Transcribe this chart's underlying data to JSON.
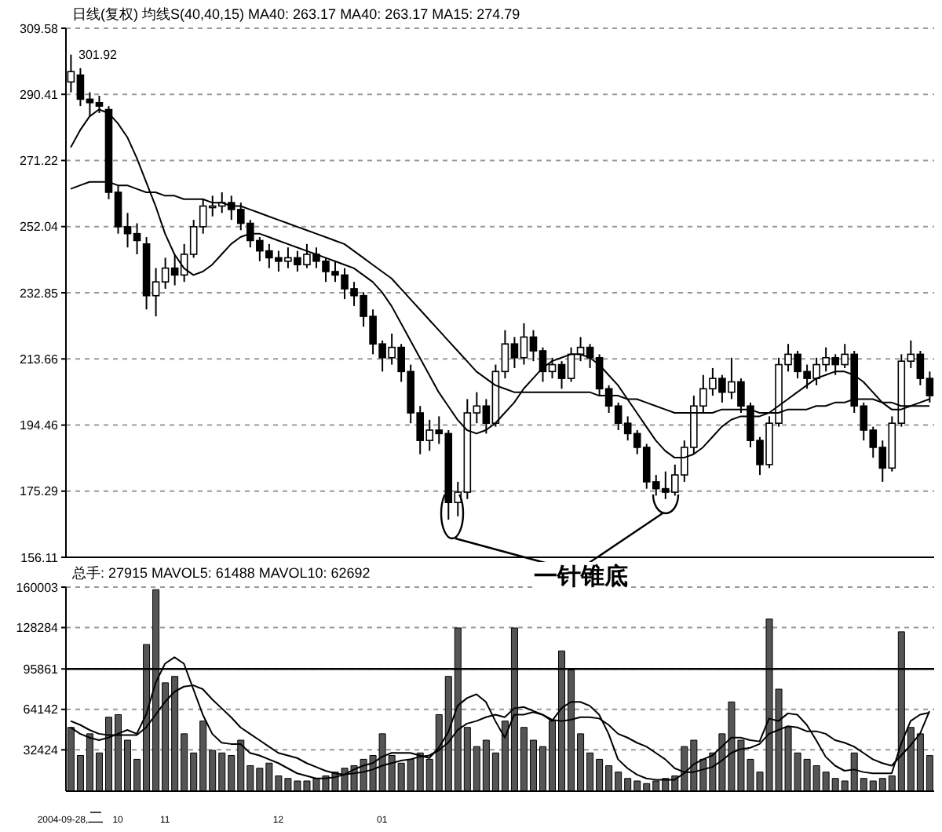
{
  "chart_data": [
    {
      "type": "candlestick",
      "title": "日线(复权)  均线S(40,40,15) MA40: 263.17 MA40: 263.17 MA15: 274.79",
      "color": "#000000",
      "categories": [
        "2004-09-28,二",
        null,
        null,
        null,
        null,
        "10",
        null,
        null,
        null,
        null,
        "11",
        null,
        null,
        null,
        null,
        null,
        null,
        null,
        null,
        null,
        null,
        null,
        "12",
        null,
        null,
        null,
        null,
        null,
        null,
        null,
        null,
        null,
        null,
        "01",
        null,
        null,
        null,
        null,
        null,
        null,
        null,
        null,
        null,
        null,
        null,
        null,
        null,
        null,
        null,
        null,
        null,
        null,
        null,
        null,
        null,
        null,
        null,
        null,
        null,
        null,
        null,
        null,
        null,
        null,
        null,
        null,
        null,
        null,
        null,
        null,
        null,
        null,
        null,
        null,
        null,
        null,
        null,
        null,
        null,
        null,
        null,
        null,
        null,
        null,
        null,
        null,
        null,
        null,
        null,
        null,
        null,
        null
      ],
      "ohlc": [
        [
          294,
          301.92,
          291,
          297
        ],
        [
          296,
          298,
          287,
          289
        ],
        [
          289,
          291,
          284,
          288
        ],
        [
          288,
          290,
          285,
          287
        ],
        [
          286,
          287,
          260,
          262
        ],
        [
          262,
          264,
          250,
          252
        ],
        [
          252,
          256,
          246,
          250
        ],
        [
          250,
          253,
          244,
          248
        ],
        [
          247,
          249,
          228,
          232
        ],
        [
          232,
          240,
          226,
          236
        ],
        [
          236,
          243,
          234,
          240
        ],
        [
          240,
          244,
          235,
          238
        ],
        [
          238,
          247,
          236,
          244
        ],
        [
          244,
          254,
          243,
          252
        ],
        [
          252,
          260,
          250,
          258
        ],
        [
          258,
          261,
          255,
          258
        ],
        [
          258,
          262,
          256,
          259
        ],
        [
          259,
          261,
          254,
          257
        ],
        [
          257,
          259,
          251,
          253
        ],
        [
          253,
          254,
          246,
          248
        ],
        [
          248,
          249,
          242,
          245
        ],
        [
          245,
          247,
          240,
          243
        ],
        [
          243,
          245,
          239,
          242
        ],
        [
          242,
          246,
          240,
          243
        ],
        [
          243,
          245,
          239,
          241
        ],
        [
          241,
          247,
          240,
          244
        ],
        [
          244,
          246,
          240,
          242
        ],
        [
          242,
          243,
          236,
          239
        ],
        [
          239,
          242,
          236,
          238
        ],
        [
          238,
          240,
          231,
          234
        ],
        [
          234,
          236,
          229,
          232
        ],
        [
          232,
          233,
          223,
          226
        ],
        [
          226,
          228,
          215,
          218
        ],
        [
          218,
          219,
          210,
          214
        ],
        [
          214,
          221,
          212,
          217
        ],
        [
          217,
          218,
          207,
          210
        ],
        [
          210,
          212,
          195,
          198
        ],
        [
          198,
          200,
          186,
          190
        ],
        [
          190,
          196,
          187,
          193
        ],
        [
          193,
          197,
          189,
          192
        ],
        [
          192,
          193,
          167,
          172
        ],
        [
          172,
          178,
          168,
          175
        ],
        [
          175,
          202,
          173,
          198
        ],
        [
          198,
          204,
          195,
          200
        ],
        [
          200,
          202,
          192,
          195
        ],
        [
          195,
          212,
          194,
          210
        ],
        [
          210,
          222,
          208,
          218
        ],
        [
          218,
          220,
          211,
          214
        ],
        [
          214,
          224,
          212,
          220
        ],
        [
          220,
          222,
          213,
          216
        ],
        [
          216,
          217,
          207,
          210
        ],
        [
          210,
          214,
          208,
          212
        ],
        [
          212,
          213,
          205,
          208
        ],
        [
          208,
          217,
          207,
          215
        ],
        [
          215,
          220,
          213,
          217
        ],
        [
          217,
          218,
          211,
          214
        ],
        [
          214,
          215,
          203,
          205
        ],
        [
          205,
          206,
          198,
          200
        ],
        [
          200,
          201,
          193,
          195
        ],
        [
          195,
          197,
          190,
          192
        ],
        [
          192,
          193,
          186,
          188
        ],
        [
          188,
          189,
          176,
          178
        ],
        [
          178,
          180,
          174,
          176
        ],
        [
          176,
          181,
          173,
          175
        ],
        [
          175,
          183,
          174,
          180
        ],
        [
          180,
          190,
          178,
          188
        ],
        [
          188,
          203,
          186,
          200
        ],
        [
          200,
          209,
          198,
          205
        ],
        [
          205,
          211,
          203,
          208
        ],
        [
          208,
          209,
          201,
          204
        ],
        [
          204,
          214,
          202,
          207
        ],
        [
          207,
          208,
          198,
          200
        ],
        [
          200,
          201,
          188,
          190
        ],
        [
          190,
          191,
          180,
          183
        ],
        [
          183,
          197,
          182,
          195
        ],
        [
          195,
          214,
          194,
          212
        ],
        [
          212,
          218,
          210,
          215
        ],
        [
          215,
          216,
          208,
          210
        ],
        [
          210,
          212,
          205,
          208
        ],
        [
          208,
          214,
          206,
          212
        ],
        [
          212,
          217,
          210,
          214
        ],
        [
          214,
          215,
          209,
          212
        ],
        [
          212,
          218,
          211,
          215
        ],
        [
          215,
          216,
          198,
          200
        ],
        [
          200,
          201,
          190,
          193
        ],
        [
          193,
          194,
          185,
          188
        ],
        [
          188,
          190,
          178,
          182
        ],
        [
          182,
          197,
          181,
          195
        ],
        [
          195,
          215,
          194,
          213
        ],
        [
          213,
          219,
          211,
          215
        ],
        [
          215,
          216,
          206,
          208
        ],
        [
          208,
          210,
          201,
          203
        ]
      ],
      "series": [
        {
          "type": "line",
          "color": "#000000",
          "values": [
            263,
            264,
            265,
            265,
            265,
            264,
            264,
            263,
            262,
            262,
            261,
            261,
            260,
            260,
            260,
            259,
            259,
            258,
            258,
            257,
            256,
            255,
            254,
            253,
            252,
            251,
            250,
            249,
            248,
            247,
            245,
            243,
            241,
            239,
            237,
            234,
            231,
            228,
            225,
            222,
            219,
            216,
            213,
            210,
            208,
            206,
            205,
            204,
            204,
            204,
            204,
            204,
            204,
            204,
            204,
            204,
            203,
            203,
            203,
            202,
            202,
            201,
            200,
            199,
            198,
            198,
            198,
            198,
            198,
            199,
            199,
            199,
            199,
            198,
            198,
            198,
            199,
            199,
            199,
            200,
            200,
            201,
            201,
            202,
            202,
            202,
            201,
            201,
            200,
            200,
            200,
            200
          ]
        },
        {
          "type": "line",
          "color": "#000000",
          "values": [
            275,
            280,
            284,
            286,
            285,
            282,
            278,
            272,
            265,
            258,
            250,
            244,
            240,
            238,
            239,
            241,
            244,
            247,
            249,
            250,
            250,
            249,
            248,
            247,
            246,
            245,
            244,
            243,
            242,
            241,
            240,
            238,
            236,
            233,
            229,
            224,
            219,
            214,
            209,
            204,
            200,
            196,
            193,
            192,
            193,
            195,
            198,
            201,
            205,
            208,
            211,
            213,
            214,
            215,
            215,
            214,
            212,
            209,
            206,
            202,
            198,
            194,
            190,
            187,
            185,
            185,
            186,
            188,
            191,
            194,
            196,
            197,
            197,
            197,
            198,
            200,
            202,
            204,
            206,
            208,
            209,
            210,
            210,
            209,
            207,
            204,
            201,
            199,
            199,
            200,
            201,
            202
          ]
        }
      ],
      "ylim": [
        156.11,
        309.58
      ],
      "yticks": [
        156.11,
        175.29,
        194.46,
        213.66,
        232.85,
        252.04,
        271.22,
        290.41,
        309.58
      ],
      "grid": "y",
      "tick_labels": "y",
      "annotations": [
        {
          "text": "301.92",
          "x": "2004-09-28,二",
          "y": 301.92
        },
        "一针锥底"
      ]
    },
    {
      "type": "bar",
      "title": "总手: 27915 MAVOL5: 61488 MAVOL10: 62692",
      "categories": [
        "2004-09-28,二",
        null,
        null,
        null,
        null,
        "10",
        null,
        null,
        null,
        null,
        "11",
        null,
        null,
        null,
        null,
        null,
        null,
        null,
        null,
        null,
        null,
        null,
        "12",
        null,
        null,
        null,
        null,
        null,
        null,
        null,
        null,
        null,
        null,
        "01",
        null,
        null,
        null,
        null,
        null,
        null,
        null,
        null,
        null,
        null,
        null,
        null,
        null,
        null,
        null,
        null,
        null,
        null,
        null,
        null,
        null,
        null,
        null,
        null,
        null,
        null,
        null,
        null,
        null,
        null,
        null,
        null,
        null,
        null,
        null,
        null,
        null,
        null,
        null,
        null,
        null,
        null,
        null,
        null,
        null,
        null,
        null,
        null,
        null,
        null,
        null,
        null,
        null,
        null,
        null,
        null,
        null,
        null
      ],
      "series": [
        {
          "type": "bar",
          "color": "#555555",
          "values": [
            50000,
            28000,
            45000,
            30000,
            58000,
            60000,
            40000,
            25000,
            115000,
            158000,
            85000,
            90000,
            45000,
            30000,
            55000,
            32000,
            30000,
            28000,
            40000,
            20000,
            18000,
            22000,
            12000,
            10000,
            8000,
            8000,
            10000,
            12000,
            15000,
            18000,
            20000,
            25000,
            28000,
            45000,
            28000,
            22000,
            25000,
            30000,
            25000,
            60000,
            90000,
            128000,
            50000,
            35000,
            40000,
            30000,
            55000,
            128000,
            50000,
            40000,
            35000,
            55000,
            110000,
            95000,
            45000,
            30000,
            25000,
            20000,
            15000,
            10000,
            8000,
            6000,
            8000,
            10000,
            12000,
            35000,
            40000,
            25000,
            30000,
            45000,
            70000,
            40000,
            25000,
            15000,
            135000,
            80000,
            50000,
            30000,
            25000,
            20000,
            15000,
            10000,
            8000,
            30000,
            10000,
            8000,
            10000,
            12000,
            125000,
            50000,
            45000,
            27915
          ]
        },
        {
          "type": "line",
          "color": "#000000",
          "values": [
            50000,
            45000,
            42000,
            40000,
            42000,
            45000,
            48000,
            45000,
            60000,
            85000,
            100000,
            105000,
            100000,
            80000,
            60000,
            45000,
            38000,
            37000,
            37000,
            30000,
            28000,
            25000,
            22000,
            18000,
            14000,
            12000,
            10000,
            10000,
            11000,
            13000,
            17000,
            20000,
            22000,
            27000,
            30000,
            30000,
            30000,
            28000,
            26000,
            34000,
            46000,
            67000,
            73000,
            76000,
            70000,
            55000,
            42000,
            60000,
            60000,
            62000,
            60000,
            55000,
            65000,
            70000,
            70000,
            67000,
            60000,
            45000,
            25000,
            18000,
            13000,
            10000,
            9000,
            9000,
            9000,
            14000,
            21000,
            25000,
            28000,
            35000,
            42000,
            42000,
            40000,
            39000,
            57000,
            55000,
            61000,
            60000,
            52000,
            40000,
            27000,
            20000,
            16000,
            17000,
            15000,
            14000,
            14000,
            14000,
            37000,
            55000,
            60000,
            61488
          ]
        },
        {
          "type": "line",
          "color": "#000000",
          "values": [
            55000,
            52000,
            48000,
            45000,
            44000,
            44000,
            44000,
            44000,
            50000,
            60000,
            70000,
            78000,
            82000,
            83000,
            80000,
            72000,
            65000,
            58000,
            50000,
            45000,
            40000,
            35000,
            30000,
            28000,
            26000,
            22000,
            19000,
            16000,
            14000,
            13000,
            14000,
            15000,
            17000,
            20000,
            22000,
            24000,
            25000,
            27000,
            28000,
            32000,
            38000,
            48000,
            53000,
            55000,
            58000,
            60000,
            58000,
            65000,
            66000,
            63000,
            60000,
            56000,
            55000,
            56000,
            58000,
            58000,
            57000,
            52000,
            45000,
            42000,
            38000,
            35000,
            30000,
            25000,
            18000,
            15000,
            15000,
            17000,
            19000,
            24000,
            30000,
            33000,
            34000,
            37000,
            45000,
            48000,
            51000,
            50000,
            47000,
            47000,
            45000,
            40000,
            38000,
            35000,
            30000,
            25000,
            22000,
            20000,
            28000,
            36000,
            45000,
            62692
          ]
        }
      ],
      "ylim": [
        0,
        160003
      ],
      "yticks": [
        32424,
        64142,
        95861,
        128284,
        160003
      ],
      "grid": "y",
      "ref_lines": [
        {
          "axis": "y",
          "value": 95861,
          "color": "#000000"
        }
      ]
    }
  ]
}
